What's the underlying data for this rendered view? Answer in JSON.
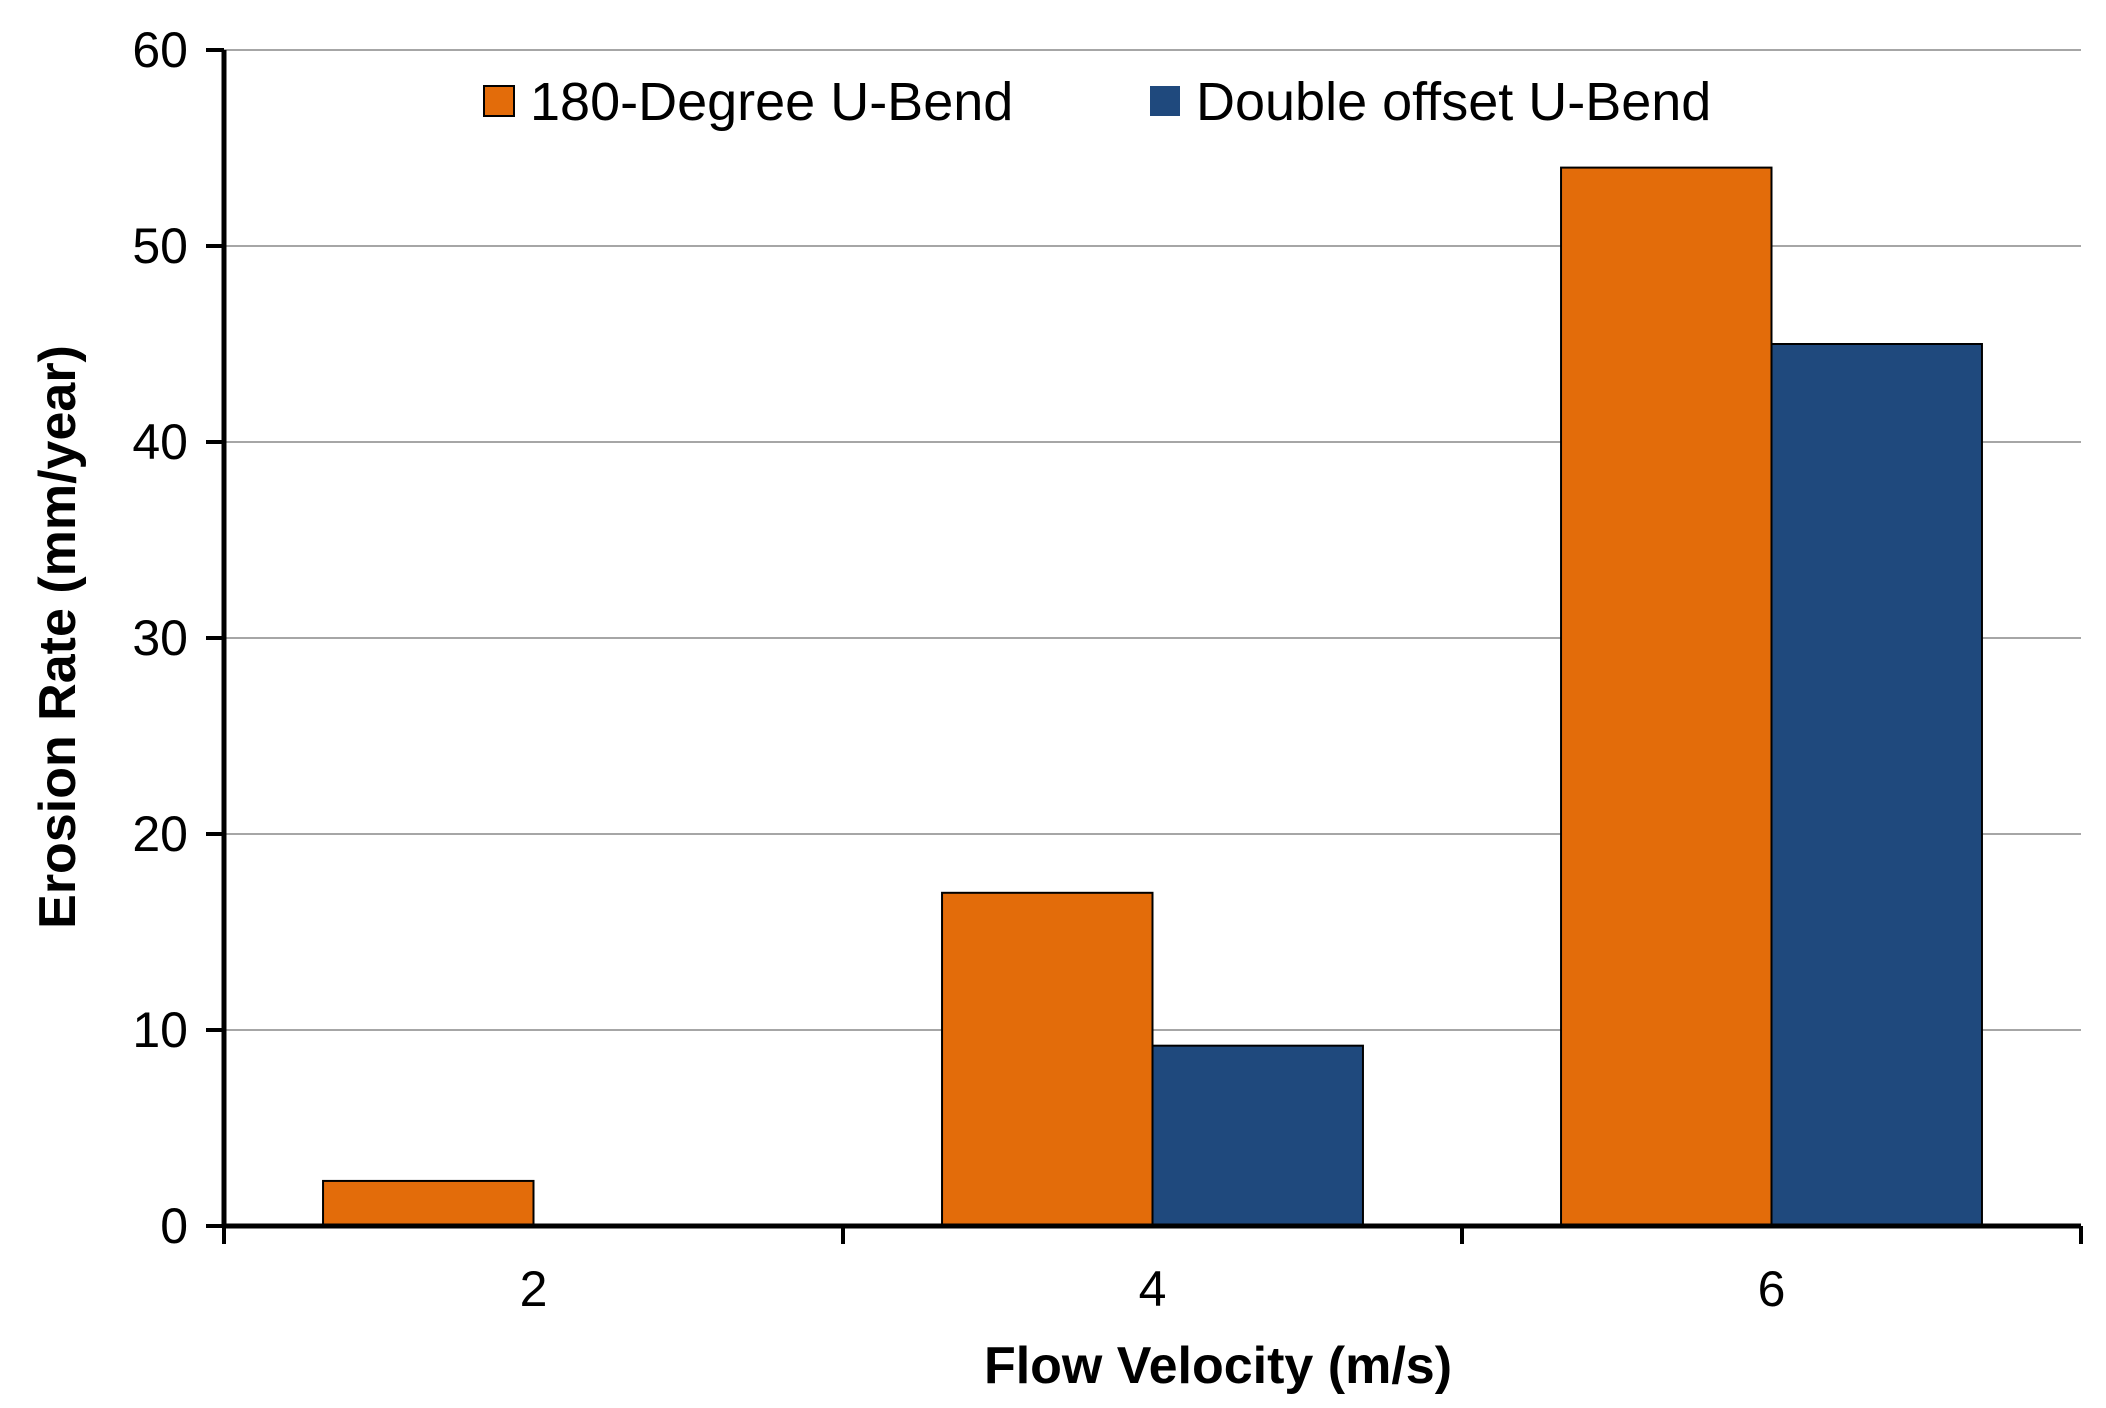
{
  "chart_data": {
    "type": "bar",
    "categories": [
      "2",
      "4",
      "6"
    ],
    "series": [
      {
        "name": "180-Degree U-Bend",
        "values": [
          2.3,
          17,
          54
        ],
        "color": "#E36C0A"
      },
      {
        "name": "Double offset U-Bend",
        "values": [
          0,
          9.2,
          45
        ],
        "color": "#1F497D"
      }
    ],
    "xlabel": "Flow Velocity (m/s)",
    "ylabel": "Erosion Rate (mm/year)",
    "ylim": [
      0,
      60
    ],
    "yticks": [
      "0",
      "10",
      "20",
      "30",
      "40",
      "50",
      "60"
    ],
    "grid": true,
    "legend_position": "top"
  }
}
